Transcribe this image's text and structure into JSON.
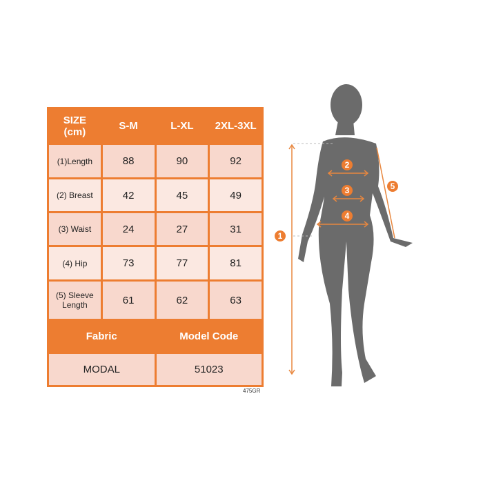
{
  "table": {
    "header": [
      "SIZE\n(cm)",
      "S-M",
      "L-XL",
      "2XL-3XL"
    ],
    "header_line1": "SIZE",
    "header_line2": "(cm)",
    "rows": [
      {
        "label": "(1)Length",
        "values": [
          "88",
          "90",
          "92"
        ]
      },
      {
        "label": "(2) Breast",
        "values": [
          "42",
          "45",
          "49"
        ]
      },
      {
        "label": "(3) Waist",
        "values": [
          "24",
          "27",
          "31"
        ]
      },
      {
        "label": "(4) Hip",
        "values": [
          "73",
          "77",
          "81"
        ]
      },
      {
        "label": "(5) Sleeve Length",
        "label_line1": "(5) Sleeve",
        "label_line2": "Length",
        "values": [
          "61",
          "62",
          "63"
        ]
      }
    ],
    "fabric_header": "Fabric",
    "model_header": "Model Code",
    "fabric": "MODAL",
    "model_code": "51023"
  },
  "image_code": "475GR",
  "markers": [
    "1",
    "2",
    "3",
    "4",
    "5"
  ],
  "colors": {
    "accent": "#ed7d31",
    "row_a": "#f8d8cd",
    "row_b": "#fbe8e1",
    "silhouette": "#6b6b6b"
  }
}
